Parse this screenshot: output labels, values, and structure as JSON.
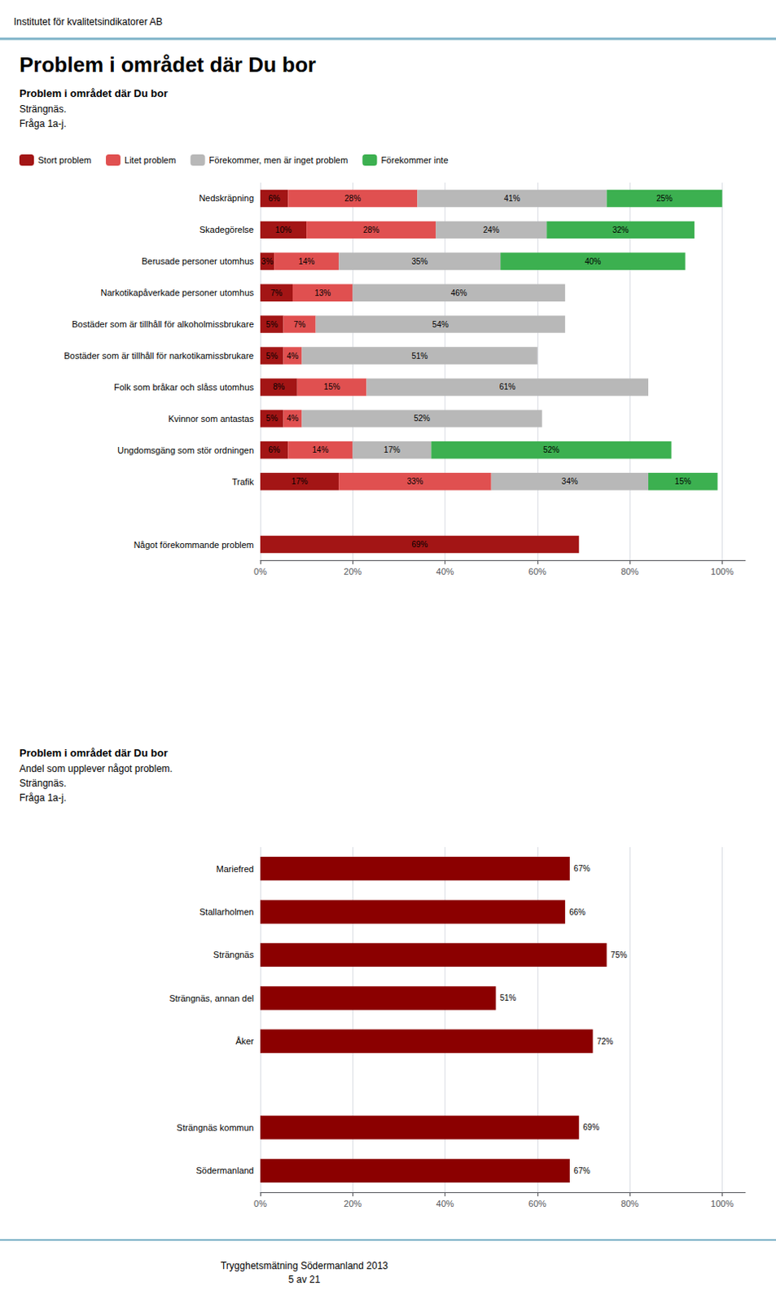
{
  "header": "Institutet för kvalitetsindikatorer AB",
  "title": "Problem i området där Du bor",
  "footer": "Trygghetsmätning Södermanland 2013\n5 av 21",
  "chart_data": [
    {
      "type": "bar",
      "orientation": "horizontal",
      "stacked": true,
      "title": "Problem i området där Du bor",
      "subtitle": [
        "Strängnäs.",
        "Fråga 1a-j."
      ],
      "categories": [
        "Nedskräpning",
        "Skadegörelse",
        "Berusade personer utomhus",
        "Narkotikapåverkade personer utomhus",
        "Bostäder som är tillhåll för alkoholmissbrukare",
        "Bostäder som är tillhåll för narkotikamissbrukare",
        "Folk som bråkar och slåss utomhus",
        "Kvinnor som antastas",
        "Ungdomsgäng som stör ordningen",
        "Trafik",
        null,
        "Något förekommande problem"
      ],
      "series": [
        {
          "name": "Stort problem",
          "color": "#a31515",
          "values": [
            6,
            10,
            3,
            7,
            5,
            5,
            8,
            5,
            6,
            17,
            0,
            69
          ],
          "value_labels": [
            "6%",
            "10%",
            "3%",
            "7%",
            "5%",
            "5%",
            "8%",
            "5%",
            "6%",
            "17%",
            null,
            "69%"
          ]
        },
        {
          "name": "Litet problem",
          "color": "#e05050",
          "values": [
            28,
            28,
            14,
            13,
            7,
            4,
            15,
            4,
            14,
            33,
            0,
            0
          ],
          "value_labels": [
            "28%",
            "28%",
            "14%",
            "13%",
            "7%",
            "4%",
            "15%",
            "4%",
            "14%",
            "33%",
            null,
            null
          ]
        },
        {
          "name": "Förekommer, men är inget problem",
          "color": "#b8b8b8",
          "values": [
            41,
            24,
            35,
            46,
            54,
            51,
            61,
            52,
            17,
            34,
            0,
            0
          ],
          "value_labels": [
            "41%",
            "24%",
            "35%",
            "46%",
            "54%",
            "51%",
            "61%",
            "52%",
            "17%",
            "34%",
            null,
            null
          ]
        },
        {
          "name": "Förekommer inte",
          "color": "#3cb050",
          "values": [
            25,
            32,
            40,
            0,
            0,
            0,
            0,
            0,
            52,
            15,
            0,
            0
          ],
          "value_labels": [
            "25%",
            "32%",
            "40%",
            null,
            null,
            null,
            null,
            null,
            "52%",
            "15%",
            null,
            null
          ]
        }
      ],
      "xlim": [
        0,
        105
      ],
      "xticks": [
        {
          "value": 0,
          "label": "0%"
        },
        {
          "value": 20,
          "label": "20%"
        },
        {
          "value": 40,
          "label": "40%"
        },
        {
          "value": 60,
          "label": "60%"
        },
        {
          "value": 80,
          "label": "80%"
        },
        {
          "value": 100,
          "label": "100%"
        }
      ],
      "grid": true,
      "legend": "top left",
      "data_labels": true
    },
    {
      "type": "bar",
      "orientation": "horizontal",
      "title": "Problem i området där Du bor",
      "subtitle": [
        "Andel som upplever något problem.",
        "Strängnäs.",
        "Fråga 1a-j."
      ],
      "categories": [
        "Mariefred",
        "Stallarholmen",
        "Strängnäs",
        "Strängnäs, annan del",
        "Åker",
        null,
        "Strängnäs kommun",
        "Södermanland"
      ],
      "values": [
        67,
        66,
        75,
        51,
        72,
        0,
        69,
        67
      ],
      "value_labels": [
        "67%",
        "66%",
        "75%",
        "51%",
        "72%",
        null,
        "69%",
        "67%"
      ],
      "color": "#8b0000",
      "xlim": [
        0,
        105
      ],
      "xticks": [
        {
          "value": 0,
          "label": "0%"
        },
        {
          "value": 20,
          "label": "20%"
        },
        {
          "value": 40,
          "label": "40%"
        },
        {
          "value": 60,
          "label": "60%"
        },
        {
          "value": 80,
          "label": "80%"
        },
        {
          "value": 100,
          "label": "100%"
        }
      ],
      "grid": true,
      "data_labels": true
    }
  ]
}
